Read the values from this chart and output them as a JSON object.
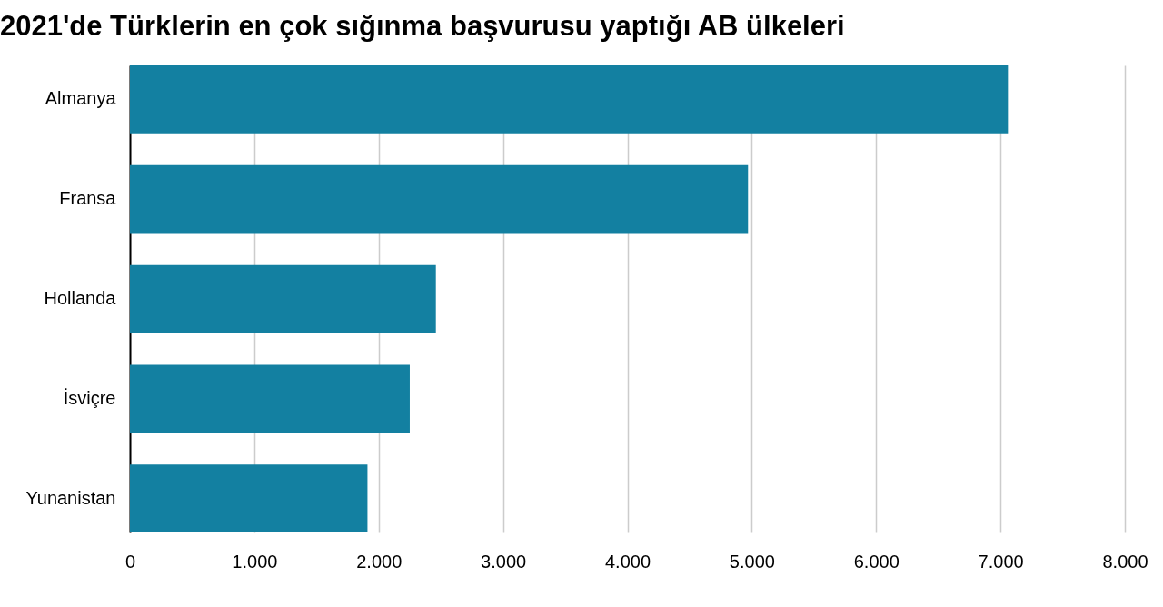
{
  "chart_data": {
    "type": "bar",
    "orientation": "horizontal",
    "title": "2021'de Türklerin en çok sığınma başvurusu yaptığı AB ülkeleri",
    "categories": [
      "Almanya",
      "Fransa",
      "Hollanda",
      "İsviçre",
      "Yunanistan"
    ],
    "values": [
      7060,
      4970,
      2460,
      2250,
      1910
    ],
    "color": "#1380a1",
    "xlim": [
      0,
      8000
    ],
    "xticks": [
      0,
      {
        "value": 1000,
        "label": "1.000"
      },
      {
        "value": 2000,
        "label": "2.000"
      },
      {
        "value": 3000,
        "label": "3.000"
      },
      {
        "value": 4000,
        "label": "4.000"
      },
      {
        "value": 5000,
        "label": "5.000"
      },
      {
        "value": 6000,
        "label": "6.000"
      },
      {
        "value": 7000,
        "label": "7.000"
      },
      {
        "value": 8000,
        "label": "8.000"
      }
    ],
    "grid": "x"
  }
}
